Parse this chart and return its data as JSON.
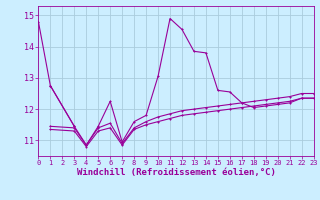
{
  "xlabel": "Windchill (Refroidissement éolien,°C)",
  "background_color": "#cceeff",
  "line_color": "#990099",
  "grid_color": "#aaccdd",
  "xlim": [
    0,
    23
  ],
  "ylim": [
    10.5,
    15.3
  ],
  "yticks": [
    11,
    12,
    13,
    14,
    15
  ],
  "xticks": [
    0,
    1,
    2,
    3,
    4,
    5,
    6,
    7,
    8,
    9,
    10,
    11,
    12,
    13,
    14,
    15,
    16,
    17,
    18,
    19,
    20,
    21,
    22,
    23
  ],
  "series1_x": [
    0,
    1,
    3
  ],
  "series1_y": [
    14.8,
    12.75,
    11.45
  ],
  "series2_x": [
    1,
    3,
    4,
    5,
    6,
    7,
    8,
    9,
    10,
    11,
    12,
    13,
    14,
    15,
    16,
    17,
    18,
    19,
    20,
    21,
    22,
    23
  ],
  "series2_y": [
    12.75,
    11.45,
    10.85,
    11.45,
    12.25,
    10.95,
    11.6,
    11.8,
    13.05,
    14.9,
    14.55,
    13.85,
    13.8,
    12.6,
    12.55,
    12.2,
    12.05,
    12.1,
    12.15,
    12.2,
    12.35,
    12.35
  ],
  "series3_x": [
    1,
    3,
    4,
    5,
    6,
    7,
    8,
    9,
    10,
    11,
    12,
    13,
    14,
    15,
    16,
    17,
    18,
    19,
    20,
    21,
    22,
    23
  ],
  "series3_y": [
    11.45,
    11.4,
    10.85,
    11.4,
    11.55,
    10.9,
    11.4,
    11.6,
    11.75,
    11.85,
    11.95,
    12.0,
    12.05,
    12.1,
    12.15,
    12.2,
    12.25,
    12.3,
    12.35,
    12.4,
    12.5,
    12.5
  ],
  "series4_x": [
    1,
    3,
    4,
    5,
    6,
    7,
    8,
    9,
    10,
    11,
    12,
    13,
    14,
    15,
    16,
    17,
    18,
    19,
    20,
    21,
    22,
    23
  ],
  "series4_y": [
    11.35,
    11.3,
    10.8,
    11.3,
    11.4,
    10.85,
    11.35,
    11.5,
    11.6,
    11.7,
    11.8,
    11.85,
    11.9,
    11.95,
    12.0,
    12.05,
    12.1,
    12.15,
    12.2,
    12.25,
    12.35,
    12.35
  ],
  "tick_fontsize": 6,
  "label_fontsize": 6.5,
  "markersize": 2.0
}
